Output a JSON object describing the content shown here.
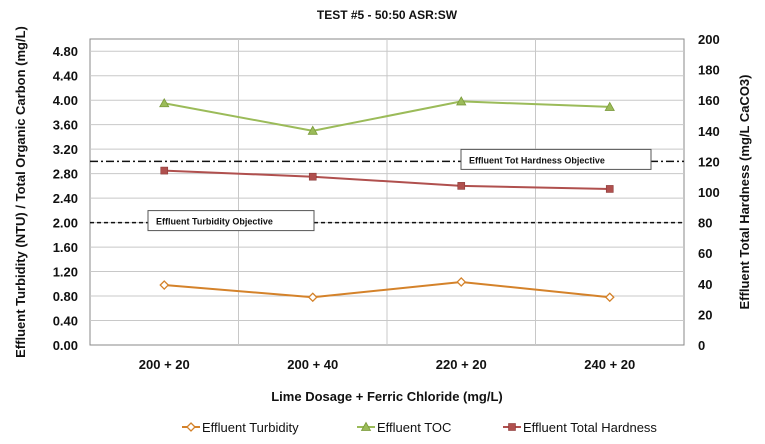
{
  "chart_data": {
    "type": "line",
    "title": "TEST #5 - 50:50 ASR:SW",
    "xlabel": "Lime Dosage + Ferric Chloride (mg/L)",
    "ylabel": "Effluent Turbidity (NTU) / Total Organic Carbon (mg/L)",
    "y2label": "Effluent Total Hardness (mg/L CaCO3)",
    "categories": [
      "200 + 20",
      "200 + 40",
      "220 + 20",
      "240 + 20"
    ],
    "ylim": [
      0,
      5.0
    ],
    "y2lim": [
      0,
      200
    ],
    "yticks": [
      "0.00",
      "0.40",
      "0.80",
      "1.20",
      "1.60",
      "2.00",
      "2.40",
      "2.80",
      "3.20",
      "3.60",
      "4.00",
      "4.40",
      "4.80"
    ],
    "y2ticks": [
      "0",
      "20",
      "40",
      "60",
      "80",
      "100",
      "120",
      "140",
      "160",
      "180",
      "200"
    ],
    "grid": true,
    "legend_position": "bottom",
    "series": [
      {
        "name": "Effluent Turbidity",
        "axis": "left",
        "color": "#d4822a",
        "marker": "diamond",
        "values": [
          0.98,
          0.78,
          1.03,
          0.78
        ]
      },
      {
        "name": "Effluent TOC",
        "axis": "left",
        "color": "#9bbb59",
        "marker": "triangle",
        "values": [
          3.95,
          3.5,
          3.98,
          3.89
        ]
      },
      {
        "name": "Effluent Total Hardness",
        "axis": "right",
        "color": "#b0504e",
        "marker": "square",
        "values": [
          114,
          110,
          104,
          102
        ]
      }
    ],
    "reference_lines": [
      {
        "label": "Effluent Tot Hardness Objective",
        "axis": "right",
        "value": 120,
        "style": "dash-dot"
      },
      {
        "label": "Effluent Turbidity Objective",
        "axis": "left",
        "value": 2.0,
        "style": "dashed"
      }
    ]
  }
}
